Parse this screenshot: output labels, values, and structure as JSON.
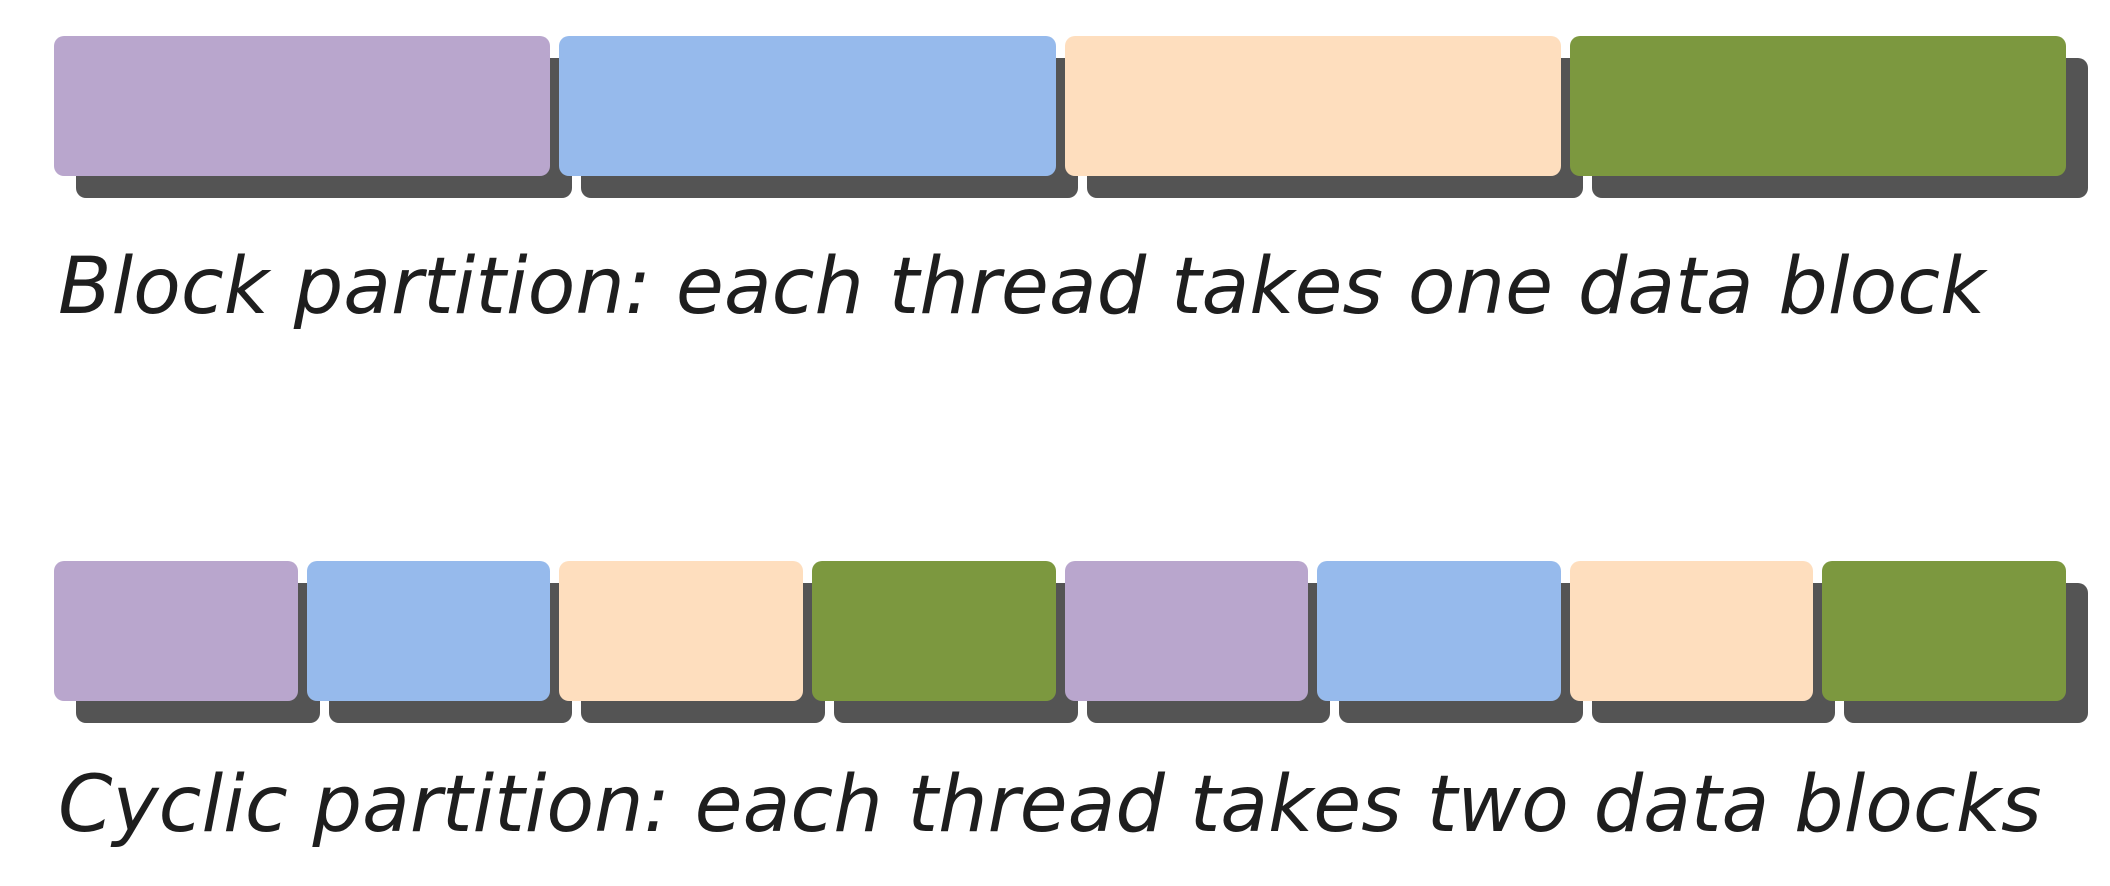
{
  "block_partition": {
    "caption": "Block partition: each thread takes one data block",
    "blocks": [
      {
        "thread": 1,
        "color": "#b9a6cd"
      },
      {
        "thread": 2,
        "color": "#96baec"
      },
      {
        "thread": 3,
        "color": "#fedebe"
      },
      {
        "thread": 4,
        "color": "#7c983f"
      }
    ]
  },
  "cyclic_partition": {
    "caption": "Cyclic partition: each thread takes two data blocks",
    "blocks": [
      {
        "thread": 1,
        "color": "#b9a6cd"
      },
      {
        "thread": 2,
        "color": "#96baec"
      },
      {
        "thread": 3,
        "color": "#fedebe"
      },
      {
        "thread": 4,
        "color": "#7c983f"
      },
      {
        "thread": 1,
        "color": "#b9a6cd"
      },
      {
        "thread": 2,
        "color": "#96baec"
      },
      {
        "thread": 3,
        "color": "#fedebe"
      },
      {
        "thread": 4,
        "color": "#7c983f"
      }
    ]
  },
  "shadow_color": "#545454"
}
